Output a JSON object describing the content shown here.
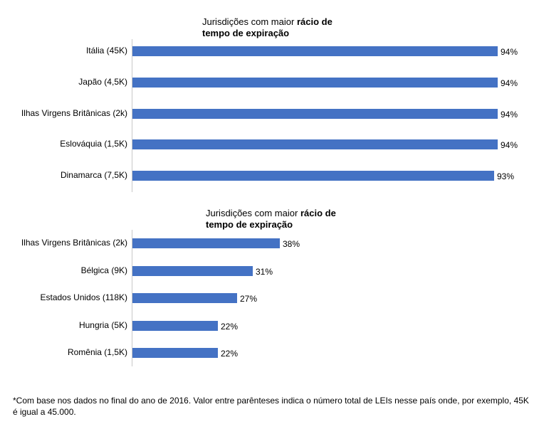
{
  "chart_data": [
    {
      "type": "bar",
      "orientation": "horizontal",
      "title_prefix": "Jurisdições com maior",
      "title_bold": "rácio de tempo de expiração",
      "title_bold_line1": "rácio de",
      "title_bold_line2": "tempo de expiração",
      "categories": [
        "Itália (45K)",
        "Japão (4,5K)",
        "Ilhas Virgens Britânicas (2k)",
        "Eslováquia (1,5K)",
        "Dinamarca (7,5K)"
      ],
      "values": [
        94,
        94,
        94,
        94,
        93
      ],
      "value_labels": [
        "94%",
        "94%",
        "94%",
        "94%",
        "93%"
      ],
      "xlim": [
        0,
        94
      ],
      "grid": false,
      "legend": "none"
    },
    {
      "type": "bar",
      "orientation": "horizontal",
      "title_prefix": "Jurisdições com maior",
      "title_bold": "rácio de tempo de expiração",
      "title_bold_line1": "rácio de",
      "title_bold_line2": "tempo de expiração",
      "categories": [
        "Ilhas Virgens Britânicas (2k)",
        "Bélgica (9K)",
        "Estados Unidos (118K)",
        "Hungria (5K)",
        "Romênia (1,5K)"
      ],
      "values": [
        38,
        31,
        27,
        22,
        22
      ],
      "value_labels": [
        "38%",
        "31%",
        "27%",
        "22%",
        "22%"
      ],
      "xlim": [
        0,
        94
      ],
      "grid": false,
      "legend": "none"
    }
  ],
  "footnote": "*Com base nos dados no final do ano de 2016. Valor entre parênteses indica o número total de LEIs nesse país onde, por exemplo, 45K é igual a 45.000.",
  "colors": {
    "bar": "#4472c4",
    "axis": "#c9c9c9"
  }
}
